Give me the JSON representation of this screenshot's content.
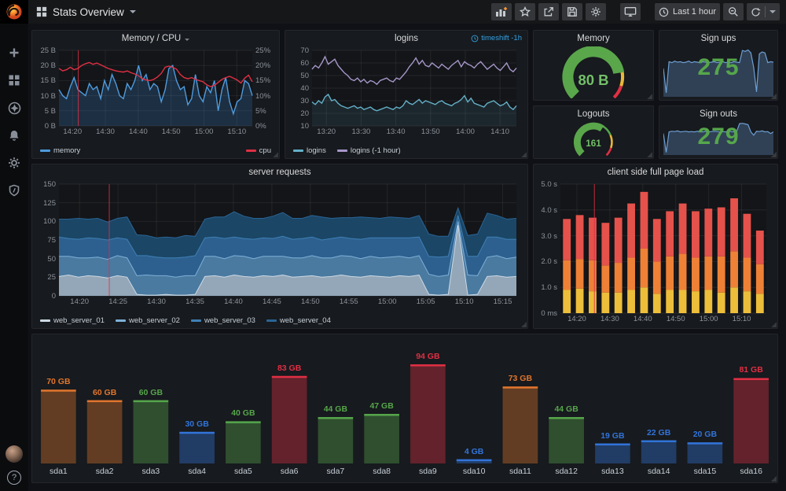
{
  "topnav": {
    "title": "Stats Overview",
    "time_range": "Last 1 hour"
  },
  "sidebar": {
    "help_glyph": "?"
  },
  "panels": {
    "memcpu": {
      "title": "Memory / CPU"
    },
    "logins": {
      "title": "logins",
      "timeshift": "timeshift -1h"
    },
    "gmem": {
      "title": "Memory",
      "value": "80 B"
    },
    "signups": {
      "title": "Sign ups",
      "value": "275"
    },
    "logouts": {
      "title": "Logouts",
      "value": "161"
    },
    "signouts": {
      "title": "Sign outs",
      "value": "279"
    },
    "server": {
      "title": "server requests"
    },
    "pageload": {
      "title": "client side full page load"
    }
  },
  "charts": {
    "memcpu": {
      "type": "line",
      "ymin": 0,
      "ymax": 25,
      "y_left": [
        "0 B",
        "5 B",
        "10 B",
        "15 B",
        "20 B",
        "25 B"
      ],
      "y_right": [
        "0%",
        "5%",
        "10%",
        "15%",
        "20%",
        "25%"
      ],
      "x": [
        "14:20",
        "14:30",
        "14:40",
        "14:50",
        "15:00",
        "15:10"
      ],
      "fs": 0.07,
      "fe": 0.92,
      "annotation": 0.1,
      "legend": "split",
      "series": [
        {
          "name": "memory",
          "color": "#4e9bde",
          "fill": "rgba(70,140,220,0.22)",
          "values": [
            12,
            10,
            9,
            13,
            16,
            12,
            11,
            10,
            14,
            12,
            13,
            9,
            15,
            12,
            17,
            14,
            10,
            9,
            14,
            12,
            15,
            20,
            15,
            17,
            12,
            14,
            13,
            8,
            12,
            19,
            20,
            15,
            12,
            13,
            7,
            9,
            17,
            10,
            8,
            13,
            11,
            15,
            5,
            12,
            16,
            8,
            4,
            8,
            9,
            15,
            14,
            10
          ]
        },
        {
          "name": "cpu",
          "color": "#e02f44",
          "values": [
            19,
            18.2,
            18.6,
            19.4,
            18.6,
            19,
            20,
            20.6,
            21,
            20.4,
            20.8,
            20.2,
            19.6,
            19,
            18.6,
            18.2,
            18,
            17.8,
            18.2,
            17.6,
            17.2,
            16.6,
            15.6,
            15.2,
            15,
            15.4,
            16.2,
            17.4,
            19.4,
            19.8,
            19.4,
            18.8,
            17,
            16,
            15.6,
            16,
            15.4,
            15,
            14.6,
            13.6,
            13,
            13.4,
            14.4,
            15.4,
            16,
            16.4,
            15.8,
            15.2,
            14.2,
            15.8,
            16.8,
            14.6
          ]
        }
      ]
    },
    "logins": {
      "type": "line",
      "ymin": 10,
      "ymax": 70,
      "y_left": [
        "10",
        "20",
        "30",
        "40",
        "50",
        "60",
        "70"
      ],
      "x": [
        "13:20",
        "13:30",
        "13:40",
        "13:50",
        "14:00",
        "14:10"
      ],
      "fs": 0.07,
      "fe": 0.92,
      "legend": "left",
      "series": [
        {
          "name": "logins",
          "color": "#64b0c8",
          "fill": "rgba(100,176,200,0.12)",
          "values": [
            29,
            27,
            30,
            28,
            33,
            35,
            30,
            31,
            28,
            26,
            25,
            24,
            25,
            26,
            24,
            25,
            23,
            24,
            25,
            23,
            22,
            23,
            24,
            25,
            24,
            23,
            25,
            24,
            26,
            30,
            28,
            27,
            29,
            31,
            28,
            30,
            29,
            28,
            27,
            29,
            30,
            28,
            27,
            26,
            28,
            29,
            31,
            34,
            29,
            32,
            28,
            27,
            26,
            25,
            28,
            29,
            30,
            28,
            26,
            27,
            29,
            25,
            23,
            26
          ]
        },
        {
          "name": "logins (-1 hour)",
          "color": "#a696c8",
          "values": [
            55,
            58,
            56,
            60,
            65,
            59,
            61,
            63,
            58,
            55,
            52,
            50,
            47,
            46,
            48,
            45,
            47,
            44,
            46,
            45,
            43,
            46,
            47,
            48,
            46,
            45,
            48,
            47,
            50,
            53,
            57,
            60,
            64,
            59,
            62,
            58,
            57,
            60,
            58,
            56,
            59,
            57,
            55,
            58,
            60,
            62,
            57,
            61,
            59,
            58,
            56,
            59,
            61,
            58,
            55,
            57,
            59,
            56,
            54,
            57,
            60,
            55,
            53,
            56
          ]
        }
      ]
    },
    "server": {
      "type": "stack",
      "ymin": 0,
      "ymax": 150,
      "y_left": [
        "0",
        "25",
        "50",
        "75",
        "100",
        "125",
        "150"
      ],
      "x": [
        "14:20",
        "14:25",
        "14:30",
        "14:35",
        "14:40",
        "14:45",
        "14:50",
        "14:55",
        "15:00",
        "15:05",
        "15:10",
        "15:15"
      ],
      "fs": 0.045,
      "fe": 0.97,
      "annotation": 0.11,
      "legend": "left",
      "series": [
        {
          "name": "web_server_01",
          "color": "#cdd9e5",
          "fillc": "#93a7b8",
          "values": [
            26,
            28,
            25,
            27,
            26,
            24,
            27,
            25,
            2,
            1,
            1,
            2,
            1,
            1,
            2,
            26,
            27,
            25,
            28,
            26,
            25,
            27,
            26,
            28,
            25,
            26,
            27,
            25,
            26,
            28,
            26,
            25,
            27,
            26,
            25,
            27,
            26,
            28,
            2,
            1,
            2,
            95,
            1,
            2,
            26,
            27,
            25,
            26
          ]
        },
        {
          "name": "web_server_02",
          "color": "#7fb0d8",
          "fillc": "#4a7aa0",
          "values": [
            27,
            25,
            26,
            24,
            26,
            25,
            27,
            26,
            25,
            27,
            26,
            25,
            24,
            26,
            25,
            27,
            26,
            25,
            26,
            27,
            25,
            26,
            27,
            25,
            26,
            25,
            27,
            26,
            25,
            26,
            27,
            25,
            26,
            25,
            27,
            26,
            25,
            26,
            27,
            25,
            26,
            5,
            27,
            25,
            26,
            27,
            25,
            26
          ]
        },
        {
          "name": "web_server_03",
          "color": "#3f80b5",
          "fillc": "#2d608f",
          "values": [
            26,
            24,
            25,
            27,
            25,
            26,
            24,
            25,
            27,
            26,
            25,
            24,
            26,
            25,
            27,
            25,
            26,
            27,
            25,
            24,
            26,
            25,
            24,
            27,
            25,
            26,
            25,
            24,
            26,
            25,
            24,
            26,
            25,
            27,
            26,
            25,
            27,
            25,
            24,
            26,
            25,
            8,
            25,
            26,
            27,
            25,
            26,
            24
          ]
        },
        {
          "name": "web_server_04",
          "color": "#2a6496",
          "fillc": "#1b4666",
          "values": [
            24,
            26,
            28,
            25,
            27,
            24,
            26,
            30,
            28,
            27,
            26,
            28,
            27,
            29,
            26,
            25,
            27,
            29,
            34,
            30,
            28,
            26,
            30,
            32,
            28,
            27,
            29,
            31,
            27,
            26,
            28,
            30,
            27,
            26,
            28,
            27,
            26,
            29,
            30,
            28,
            27,
            10,
            28,
            30,
            32,
            29,
            27,
            28
          ]
        }
      ]
    },
    "pageload": {
      "type": "bars",
      "ymin": 0,
      "ymax": 5,
      "y_left": [
        "0 ms",
        "1.0 s",
        "2.0 s",
        "3.0 s",
        "4.0 s",
        "5.0 s"
      ],
      "x": [
        "14:20",
        "14:30",
        "14:40",
        "14:50",
        "15:00",
        "15:10"
      ],
      "fs": 0.08,
      "fe": 0.88,
      "annotation": 0.165,
      "segments": [
        {
          "name": "yellow",
          "color": "#ecbe3a",
          "values": [
            0.9,
            0.95,
            0.85,
            0.8,
            0.8,
            0.9,
            1.0,
            0.75,
            0.9,
            0.9,
            0.85,
            0.9,
            0.8,
            1.0,
            0.85,
            0.75
          ]
        },
        {
          "name": "orange",
          "color": "#ee8136",
          "values": [
            1.15,
            1.15,
            1.2,
            1.05,
            1.15,
            1.25,
            1.5,
            1.25,
            1.3,
            1.4,
            1.3,
            1.3,
            1.4,
            1.4,
            1.3,
            1.15
          ]
        },
        {
          "name": "red",
          "color": "#e4524b",
          "values": [
            1.6,
            1.7,
            1.65,
            1.65,
            1.75,
            2.1,
            2.2,
            1.65,
            1.75,
            1.95,
            1.8,
            1.85,
            1.9,
            2.05,
            1.7,
            1.3
          ]
        }
      ]
    },
    "disks": {
      "type": "disks",
      "ymax": 100,
      "bars": [
        {
          "name": "sda1",
          "text": "70 GB",
          "value": 70,
          "color": "#e0752d"
        },
        {
          "name": "sda2",
          "text": "60 GB",
          "value": 60,
          "color": "#e0752d"
        },
        {
          "name": "sda3",
          "text": "60 GB",
          "value": 60,
          "color": "#56a64b"
        },
        {
          "name": "sda4",
          "text": "30 GB",
          "value": 30,
          "color": "#3274d9"
        },
        {
          "name": "sda5",
          "text": "40 GB",
          "value": 40,
          "color": "#56a64b"
        },
        {
          "name": "sda6",
          "text": "83 GB",
          "value": 83,
          "color": "#e02f44"
        },
        {
          "name": "sda7",
          "text": "44 GB",
          "value": 44,
          "color": "#56a64b"
        },
        {
          "name": "sda8",
          "text": "47 GB",
          "value": 47,
          "color": "#56a64b"
        },
        {
          "name": "sda9",
          "text": "94 GB",
          "value": 94,
          "color": "#e02f44"
        },
        {
          "name": "sda10",
          "text": "4 GB",
          "value": 4,
          "color": "#3274d9"
        },
        {
          "name": "sda11",
          "text": "73 GB",
          "value": 73,
          "color": "#e0752d"
        },
        {
          "name": "sda12",
          "text": "44 GB",
          "value": 44,
          "color": "#56a64b"
        },
        {
          "name": "sda13",
          "text": "19 GB",
          "value": 19,
          "color": "#3274d9"
        },
        {
          "name": "sda14",
          "text": "22 GB",
          "value": 22,
          "color": "#3274d9"
        },
        {
          "name": "sda15",
          "text": "20 GB",
          "value": 20,
          "color": "#3274d9"
        },
        {
          "name": "sda16",
          "text": "81 GB",
          "value": 81,
          "color": "#e02f44"
        }
      ]
    },
    "gmem": {
      "type": "gauge",
      "fraction": 0.8
    },
    "glogout": {
      "type": "gauge",
      "fraction": 0.62
    },
    "spark_su": {
      "type": "spark",
      "color": "#6e9fd4",
      "fill": "rgba(94,140,190,0.35)",
      "values": [
        58,
        8,
        72,
        70,
        73,
        71,
        72,
        70,
        71,
        73,
        70,
        72,
        71,
        70,
        72,
        71,
        70,
        71,
        72,
        70,
        71,
        72,
        70,
        71,
        70,
        72,
        71,
        70,
        95,
        93,
        96,
        90,
        60,
        10,
        88,
        92,
        90,
        70,
        72,
        71
      ]
    },
    "spark_so": {
      "type": "spark",
      "color": "#6e9fd4",
      "fill": "rgba(94,140,190,0.35)",
      "values": [
        65,
        8,
        70,
        72,
        71,
        73,
        70,
        71,
        72,
        70,
        71,
        70,
        72,
        71,
        70,
        72,
        70,
        71,
        72,
        71,
        70,
        71,
        70,
        72,
        71,
        70,
        72,
        95,
        96,
        94,
        92,
        70,
        60,
        72,
        71,
        73,
        70,
        71,
        65,
        70
      ]
    }
  }
}
